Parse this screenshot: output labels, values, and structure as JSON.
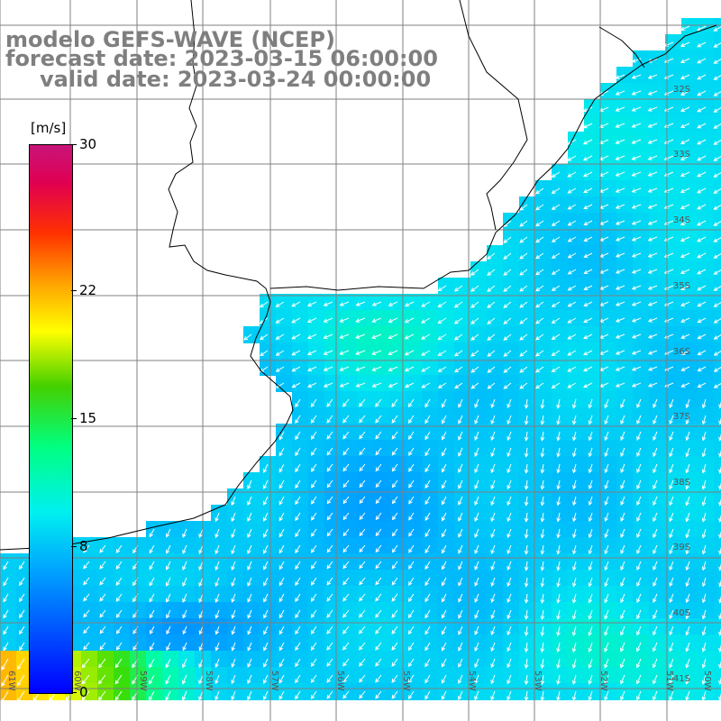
{
  "title": {
    "line1": "modelo GEFS-WAVE (NCEP)",
    "line2": "forecast date: 2023-03-15 06:00:00",
    "line3": "valid date: 2023-03-24 00:00:00"
  },
  "colorbar": {
    "unit": "[m/s]",
    "ticks": [
      "30",
      "22",
      "15",
      "8",
      "0"
    ],
    "tick_values": [
      30,
      22,
      15,
      8,
      0
    ],
    "min": 0,
    "max": 30,
    "colors": [
      "#0000ff",
      "#00a0ff",
      "#00f0f0",
      "#00ff80",
      "#44d000",
      "#ffff00",
      "#ffa000",
      "#ff3000",
      "#c8147a"
    ]
  },
  "map": {
    "lat_labels": [
      "32S",
      "33S",
      "34S",
      "35S",
      "36S",
      "37S",
      "38S",
      "39S",
      "40S",
      "41S"
    ],
    "lon_labels": [
      "61W",
      "60W",
      "59W",
      "58W",
      "57W",
      "56W",
      "55W",
      "54W",
      "53W",
      "52W",
      "51W",
      "50W"
    ],
    "land_color": "#ffffff",
    "grid_color": "#808080",
    "arrow_color": "#ffffff"
  }
}
